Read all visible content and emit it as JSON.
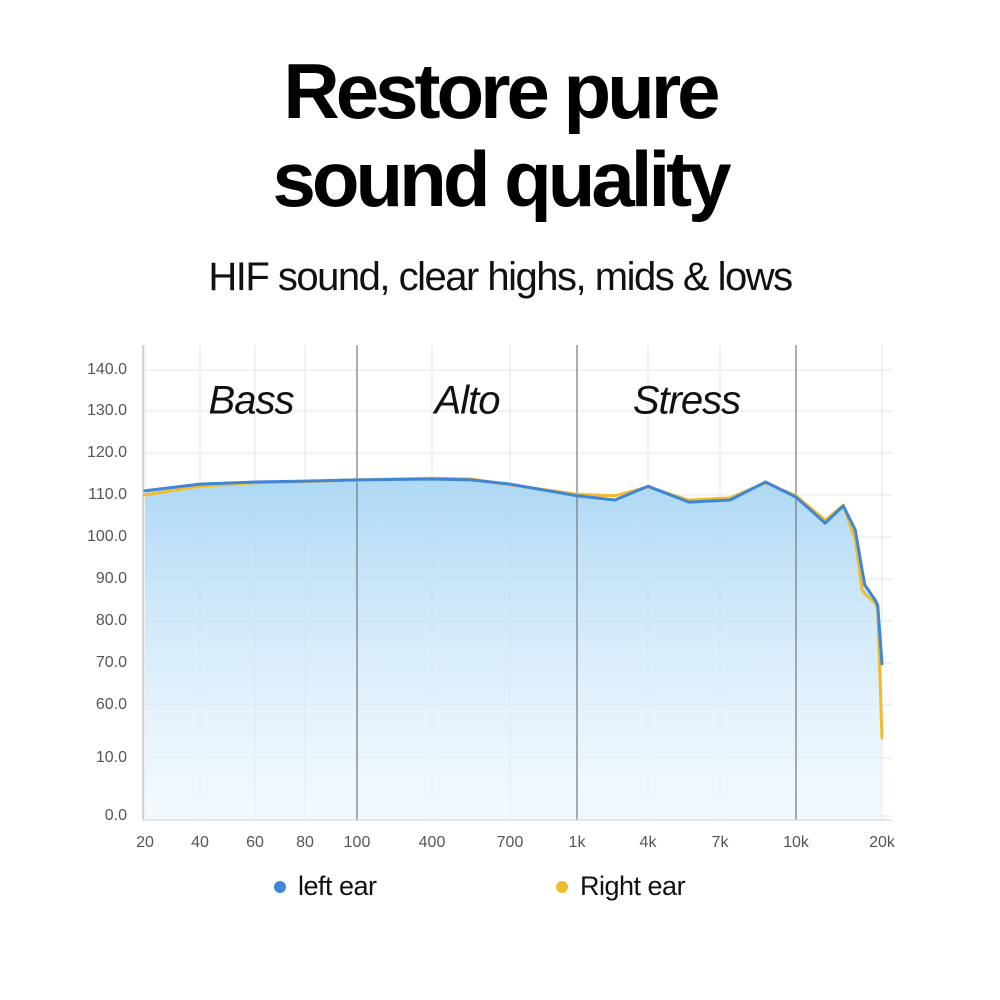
{
  "chart_data": {
    "type": "line",
    "title_lines": [
      "Restore pure",
      "sound quality"
    ],
    "subtitle": "HIF sound, clear highs, mids & lows",
    "sections": [
      "Bass",
      "Alto",
      "Stress"
    ],
    "dividers": [
      100,
      1000,
      10000
    ],
    "x": [
      20,
      40,
      60,
      80,
      100,
      400,
      550,
      700,
      1000,
      2600,
      4000,
      5700,
      7400,
      8800,
      10000,
      13400,
      15500,
      16900,
      17700,
      18000,
      19200,
      19500,
      20000
    ],
    "series": [
      {
        "name": "left ear",
        "color": "#3f86d8",
        "values": [
          111,
          112.6,
          113.1,
          113.3,
          113.6,
          113.8,
          113.6,
          112.6,
          109.8,
          108.8,
          112.1,
          108.3,
          108.8,
          113.1,
          109.5,
          103.3,
          107.4,
          101.7,
          92,
          88.6,
          85,
          83.8,
          69.8
        ]
      },
      {
        "name": "Right ear",
        "color": "#f0bc2a",
        "values": [
          110,
          112.1,
          112.9,
          113.2,
          113.6,
          114,
          113.8,
          112.4,
          110.2,
          109.8,
          111.9,
          108.8,
          109.3,
          112.9,
          109.8,
          104,
          107.6,
          99.3,
          87.4,
          86.5,
          84.3,
          83,
          29
        ]
      }
    ],
    "xlim": [
      20,
      20000
    ],
    "xticks": [
      20,
      40,
      60,
      80,
      100,
      400,
      700,
      {
        "value": 1000,
        "label": "1k"
      },
      {
        "value": 4000,
        "label": "4k"
      },
      {
        "value": 7000,
        "label": "7k"
      },
      {
        "value": 10000,
        "label": "10k"
      },
      {
        "value": 20000,
        "label": "20k"
      }
    ],
    "ylim": [
      0,
      140
    ],
    "yticks": [
      {
        "value": 0,
        "label": "0.0"
      },
      {
        "value": 10,
        "label": "10.0"
      },
      {
        "value": 60,
        "label": "60.0"
      },
      {
        "value": 70,
        "label": "70.0"
      },
      {
        "value": 80,
        "label": "80.0"
      },
      {
        "value": 90,
        "label": "90.0"
      },
      {
        "value": 100,
        "label": "100.0"
      },
      {
        "value": 110,
        "label": "110.0"
      },
      {
        "value": 120,
        "label": "120.0"
      },
      {
        "value": 130,
        "label": "130.0"
      },
      {
        "value": 140,
        "label": "140.0"
      }
    ],
    "grid": true
  }
}
